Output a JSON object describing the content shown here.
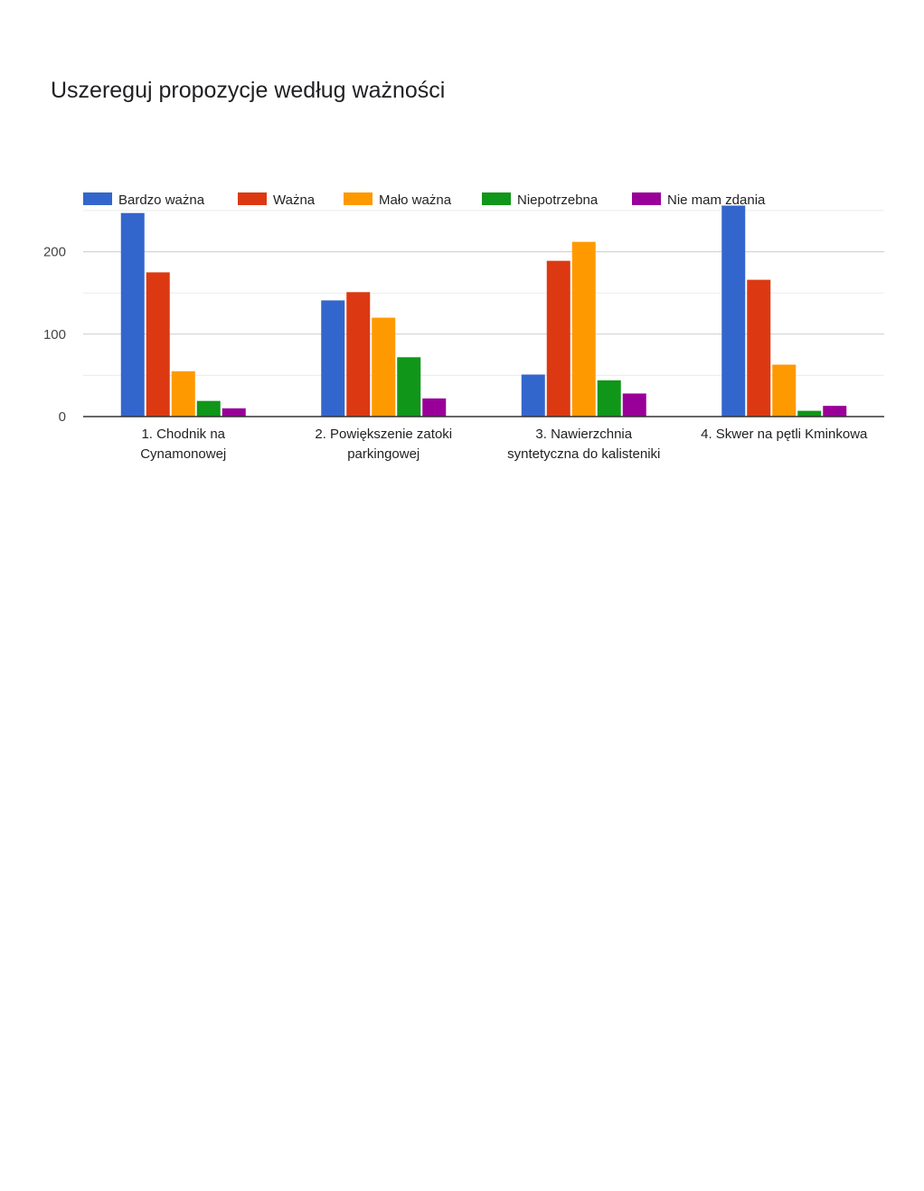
{
  "title": "Uszereguj propozycje według ważności",
  "chart_data": {
    "type": "bar",
    "title": "",
    "xlabel": "",
    "ylabel": "",
    "ylim": [
      0,
      250
    ],
    "yticks": [
      0,
      100,
      200
    ],
    "grid": true,
    "legend_position": "top",
    "categories": [
      [
        "1. Chodnik na",
        "Cynamonowej"
      ],
      [
        "2. Powiększenie zatoki",
        "parkingowej"
      ],
      [
        "3. Nawierzchnia",
        "syntetyczna do kalisteniki"
      ],
      [
        "4. Skwer na pętli Kminkowa"
      ]
    ],
    "series": [
      {
        "name": "Bardzo ważna",
        "color": "#3366cc",
        "values": [
          247,
          141,
          51,
          256
        ]
      },
      {
        "name": "Ważna",
        "color": "#dc3912",
        "values": [
          175,
          151,
          189,
          166
        ]
      },
      {
        "name": "Mało ważna",
        "color": "#ff9900",
        "values": [
          55,
          120,
          212,
          63
        ]
      },
      {
        "name": "Niepotrzebna",
        "color": "#109618",
        "values": [
          19,
          72,
          44,
          7
        ]
      },
      {
        "name": "Nie mam zdania",
        "color": "#990099",
        "values": [
          10,
          22,
          28,
          13
        ]
      }
    ]
  }
}
